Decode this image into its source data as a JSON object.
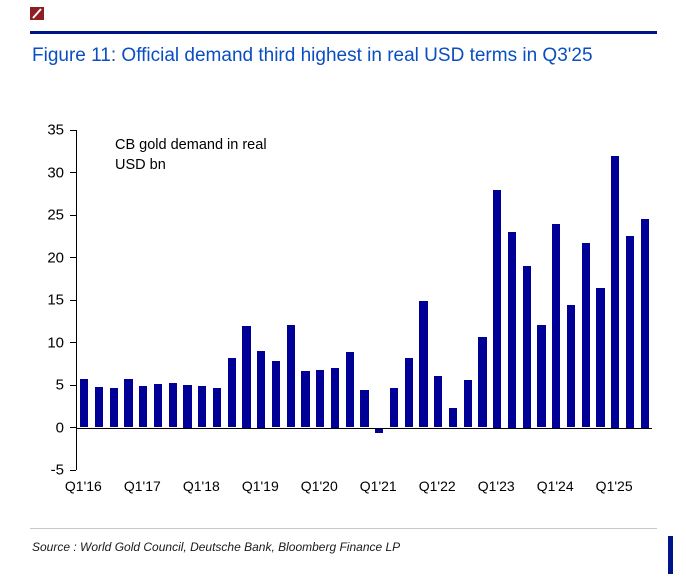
{
  "figure": {
    "title": "Figure 11: Official demand third highest in real USD terms in Q3'25"
  },
  "source": "Source : World Gold Council, Deutsche Bank, Bloomberg Finance LP",
  "colors": {
    "title": "#0a4ec2",
    "bar": "#000096",
    "rule": "#001489",
    "logo_red": "#8f1d21",
    "accent_bar": "#001489"
  },
  "chart_data": {
    "type": "bar",
    "title": "Figure 11: Official demand third highest in real USD terms in Q3'25",
    "annotation": "CB gold demand in real USD bn",
    "xlabel": "",
    "ylabel": "",
    "ylim": [
      -5,
      35
    ],
    "yticks": [
      -5,
      0,
      5,
      10,
      15,
      20,
      25,
      30,
      35
    ],
    "grid": false,
    "legend": null,
    "x_tick_every": 4,
    "x": [
      "Q1'16",
      "Q2'16",
      "Q3'16",
      "Q4'16",
      "Q1'17",
      "Q2'17",
      "Q3'17",
      "Q4'17",
      "Q1'18",
      "Q2'18",
      "Q3'18",
      "Q4'18",
      "Q1'19",
      "Q2'19",
      "Q3'19",
      "Q4'19",
      "Q1'20",
      "Q2'20",
      "Q3'20",
      "Q4'20",
      "Q1'21",
      "Q2'21",
      "Q3'21",
      "Q4'21",
      "Q1'22",
      "Q2'22",
      "Q3'22",
      "Q4'22",
      "Q1'23",
      "Q2'23",
      "Q3'23",
      "Q4'23",
      "Q1'24",
      "Q2'24",
      "Q3'24",
      "Q4'24",
      "Q1'25",
      "Q2'25",
      "Q3'25"
    ],
    "values": [
      5.7,
      4.8,
      4.7,
      5.7,
      4.9,
      5.1,
      5.2,
      5.0,
      4.9,
      4.7,
      8.2,
      12.0,
      9.0,
      7.8,
      12.1,
      6.7,
      6.8,
      7.0,
      8.9,
      4.4,
      -0.7,
      4.6,
      8.2,
      14.9,
      6.1,
      2.3,
      5.6,
      10.6,
      28.0,
      23.0,
      19.0,
      12.1,
      24.0,
      14.4,
      21.7,
      16.4,
      32.0,
      22.5,
      24.5
    ]
  }
}
